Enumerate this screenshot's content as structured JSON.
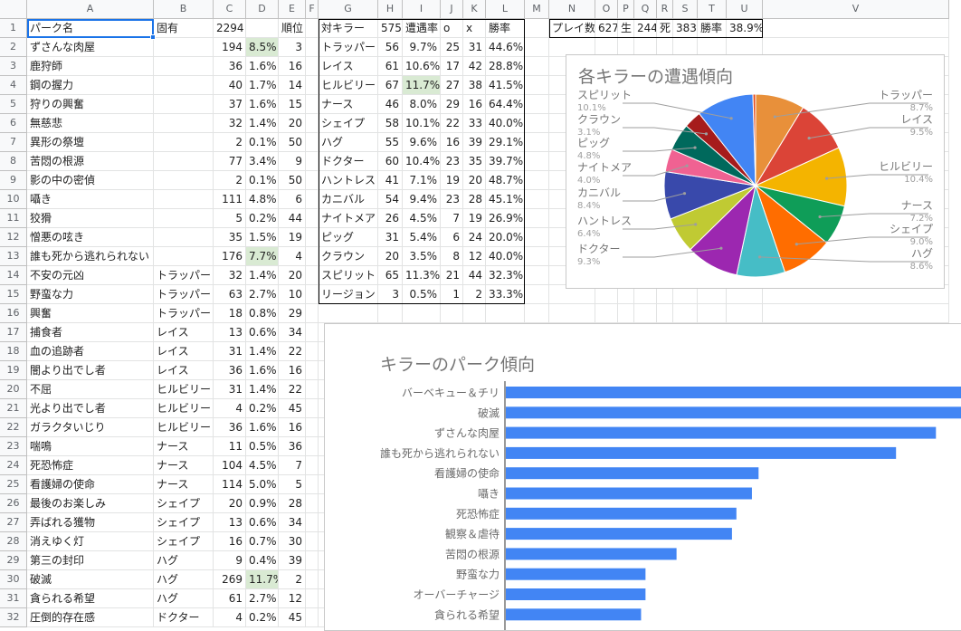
{
  "columns": [
    "A",
    "B",
    "C",
    "D",
    "E",
    "F",
    "G",
    "H",
    "I",
    "J",
    "K",
    "L",
    "M",
    "N",
    "O",
    "P",
    "Q",
    "R",
    "S",
    "T",
    "U",
    "V"
  ],
  "rows": [
    [
      "パーク名",
      "固有",
      "2294",
      "",
      "順位",
      "",
      "対キラー",
      "575",
      "遭遇率",
      "o",
      "x",
      "勝率",
      "",
      "プレイ数",
      "627",
      "生",
      "244",
      "死",
      "383",
      "勝率",
      "38.9%",
      ""
    ],
    [
      "ずさんな肉屋",
      "",
      "194",
      "8.5%",
      "3",
      "",
      "トラッパー",
      "56",
      "9.7%",
      "25",
      "31",
      "44.6%"
    ],
    [
      "鹿狩師",
      "",
      "36",
      "1.6%",
      "16",
      "",
      "レイス",
      "61",
      "10.6%",
      "17",
      "42",
      "28.8%"
    ],
    [
      "鋼の握力",
      "",
      "40",
      "1.7%",
      "14",
      "",
      "ヒルビリー",
      "67",
      "11.7%",
      "27",
      "38",
      "41.5%"
    ],
    [
      "狩りの興奮",
      "",
      "37",
      "1.6%",
      "15",
      "",
      "ナース",
      "46",
      "8.0%",
      "29",
      "16",
      "64.4%"
    ],
    [
      "無慈悲",
      "",
      "32",
      "1.4%",
      "20",
      "",
      "シェイプ",
      "58",
      "10.1%",
      "22",
      "33",
      "40.0%"
    ],
    [
      "異形の祭壇",
      "",
      "2",
      "0.1%",
      "50",
      "",
      "ハグ",
      "55",
      "9.6%",
      "16",
      "39",
      "29.1%"
    ],
    [
      "苦悶の根源",
      "",
      "77",
      "3.4%",
      "9",
      "",
      "ドクター",
      "60",
      "10.4%",
      "23",
      "35",
      "39.7%"
    ],
    [
      "影の中の密偵",
      "",
      "2",
      "0.1%",
      "50",
      "",
      "ハントレス",
      "41",
      "7.1%",
      "19",
      "20",
      "48.7%"
    ],
    [
      "囁き",
      "",
      "111",
      "4.8%",
      "6",
      "",
      "カニバル",
      "54",
      "9.4%",
      "23",
      "28",
      "45.1%"
    ],
    [
      "狡猾",
      "",
      "5",
      "0.2%",
      "44",
      "",
      "ナイトメア",
      "26",
      "4.5%",
      "7",
      "19",
      "26.9%"
    ],
    [
      "憎悪の呟き",
      "",
      "35",
      "1.5%",
      "19",
      "",
      "ピッグ",
      "31",
      "5.4%",
      "6",
      "24",
      "20.0%"
    ],
    [
      "誰も死から逃れられない",
      "",
      "176",
      "7.7%",
      "4",
      "",
      "クラウン",
      "20",
      "3.5%",
      "8",
      "12",
      "40.0%"
    ],
    [
      "不安の元凶",
      "トラッパー",
      "32",
      "1.4%",
      "20",
      "",
      "スピリット",
      "65",
      "11.3%",
      "21",
      "44",
      "32.3%"
    ],
    [
      "野蛮な力",
      "トラッパー",
      "63",
      "2.7%",
      "10",
      "",
      "リージョン",
      "3",
      "0.5%",
      "1",
      "2",
      "33.3%"
    ],
    [
      "興奮",
      "トラッパー",
      "18",
      "0.8%",
      "29"
    ],
    [
      "捕食者",
      "レイス",
      "13",
      "0.6%",
      "34"
    ],
    [
      "血の追跡者",
      "レイス",
      "31",
      "1.4%",
      "22"
    ],
    [
      "闇より出でし者",
      "レイス",
      "36",
      "1.6%",
      "16"
    ],
    [
      "不屈",
      "ヒルビリー",
      "31",
      "1.4%",
      "22"
    ],
    [
      "光より出でし者",
      "ヒルビリー",
      "4",
      "0.2%",
      "45"
    ],
    [
      "ガラクタいじり",
      "ヒルビリー",
      "36",
      "1.6%",
      "16"
    ],
    [
      "喘鳴",
      "ナース",
      "11",
      "0.5%",
      "36"
    ],
    [
      "死恐怖症",
      "ナース",
      "104",
      "4.5%",
      "7"
    ],
    [
      "看護婦の使命",
      "ナース",
      "114",
      "5.0%",
      "5"
    ],
    [
      "最後のお楽しみ",
      "シェイプ",
      "20",
      "0.9%",
      "28"
    ],
    [
      "弄ばれる獲物",
      "シェイプ",
      "13",
      "0.6%",
      "34"
    ],
    [
      "消えゆく灯",
      "シェイプ",
      "16",
      "0.7%",
      "30"
    ],
    [
      "第三の封印",
      "ハグ",
      "9",
      "0.4%",
      "39"
    ],
    [
      "破滅",
      "ハグ",
      "269",
      "11.7%",
      "2"
    ],
    [
      "貪られる希望",
      "ハグ",
      "61",
      "2.7%",
      "12"
    ],
    [
      "圧倒的存在感",
      "ドクター",
      "4",
      "0.2%",
      "45"
    ]
  ],
  "pie_chart": {
    "title": "各キラーの遭遇傾向",
    "chart_data": {
      "type": "pie",
      "title": "各キラーの遭遇傾向",
      "categories": [
        "トラッパー",
        "レイス",
        "ヒルビリー",
        "ナース",
        "シェイプ",
        "ハグ",
        "ドクター",
        "ハントレス",
        "カニバル",
        "ナイトメア",
        "ピッグ",
        "クラウン",
        "スピリット",
        "リージョン"
      ],
      "values": [
        56,
        61,
        67,
        46,
        58,
        55,
        60,
        41,
        54,
        26,
        31,
        20,
        65,
        3
      ],
      "labels_pct": [
        "8.7%",
        "9.5%",
        "10.4%",
        "7.2%",
        "9.0%",
        "8.6%",
        "9.3%",
        "6.4%",
        "8.4%",
        "4.0%",
        "4.8%",
        "3.1%",
        "10.1%",
        ""
      ],
      "colors": [
        "#e8903a",
        "#db4437",
        "#f4b400",
        "#0f9d58",
        "#ff6d00",
        "#46bdc6",
        "#9c27b0",
        "#c0ca33",
        "#3949ab",
        "#f06292",
        "#00695c",
        "#a61c1c",
        "#4285f4",
        "#e64a19"
      ],
      "legend": "labels"
    }
  },
  "bar_chart": {
    "title": "キラーのパーク傾向",
    "chart_data": {
      "type": "bar",
      "orientation": "horizontal",
      "title": "キラーのパーク傾向",
      "categories": [
        "バーベキュー＆チリ",
        "破滅",
        "ずさんな肉屋",
        "誰も死から逃れられない",
        "看護婦の使命",
        "囁き",
        "死恐怖症",
        "観察＆虐待",
        "苦悶の根源",
        "野蛮な力",
        "オーバーチャージ",
        "貪られる希望"
      ],
      "values": [
        290,
        269,
        194,
        176,
        114,
        111,
        104,
        102,
        77,
        63,
        63,
        61
      ],
      "color": "#4285f4"
    }
  }
}
